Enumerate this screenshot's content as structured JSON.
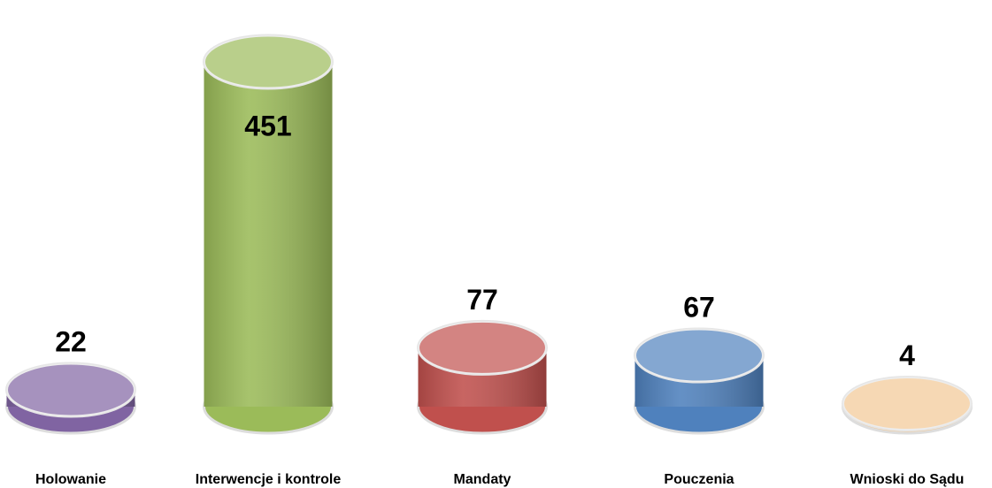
{
  "chart_data": {
    "type": "bar",
    "categories": [
      "Holowanie",
      "Interwencje i kontrole",
      "Mandaty",
      "Pouczenia",
      "Wnioski do Sądu"
    ],
    "values": [
      22,
      451,
      77,
      67,
      4
    ],
    "colors": [
      "#8064a2",
      "#9bbb59",
      "#c0504d",
      "#4f81bd",
      "#f2c894"
    ]
  }
}
